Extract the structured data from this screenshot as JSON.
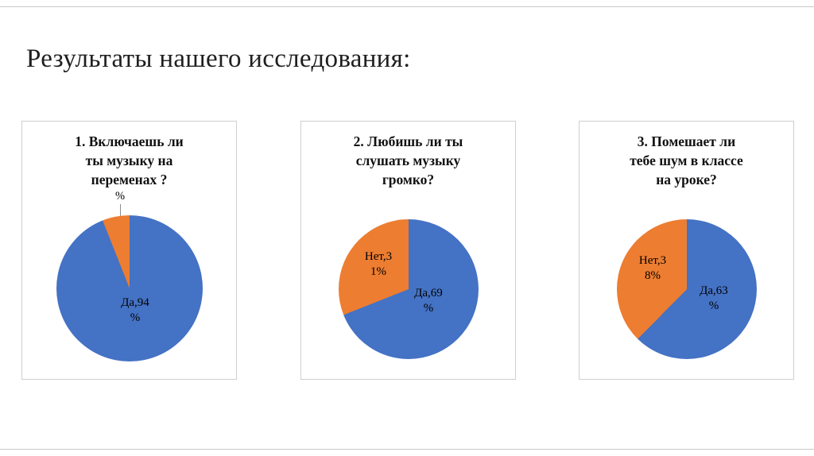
{
  "slide": {
    "title": "Результаты нашего исследования:"
  },
  "colors": {
    "da": "#4472C4",
    "net": "#ED7D31"
  },
  "charts": [
    {
      "title_lines": [
        "1. Включаешь ли",
        "ты музыку на",
        "переменах ?"
      ],
      "net_leader_label": "%",
      "da_line1": "Да,94",
      "da_line2": "%"
    },
    {
      "title_lines": [
        "2. Любишь ли ты",
        "слушать музыку",
        "громко?"
      ],
      "net_line1": "Нет,3",
      "net_line2": "1%",
      "da_line1": "Да,69",
      "da_line2": "%"
    },
    {
      "title_lines": [
        "3. Помешает ли",
        "тебе шум в классе",
        "на уроке?"
      ],
      "net_line1": "Нет,3",
      "net_line2": "8%",
      "da_line1": "Да,63",
      "da_line2": "%"
    }
  ],
  "chart_data": [
    {
      "type": "pie",
      "title": "1. Включаешь ли ты музыку на переменах ?",
      "labels": [
        "Да",
        "Нет"
      ],
      "values": [
        94,
        6
      ],
      "colors": [
        "#4472C4",
        "#ED7D31"
      ],
      "legend": "none",
      "data_labels": true,
      "start_angle": "12-oclock-clockwise"
    },
    {
      "type": "pie",
      "title": "2. Любишь ли ты слушать музыку громко?",
      "labels": [
        "Да",
        "Нет"
      ],
      "values": [
        69,
        31
      ],
      "colors": [
        "#4472C4",
        "#ED7D31"
      ],
      "legend": "none",
      "data_labels": true,
      "start_angle": "12-oclock-clockwise"
    },
    {
      "type": "pie",
      "title": "3. Помешает ли тебе шум в классе на уроке?",
      "labels": [
        "Да",
        "Нет"
      ],
      "values": [
        63,
        38
      ],
      "colors": [
        "#4472C4",
        "#ED7D31"
      ],
      "legend": "none",
      "data_labels": true,
      "start_angle": "12-oclock-clockwise"
    }
  ]
}
